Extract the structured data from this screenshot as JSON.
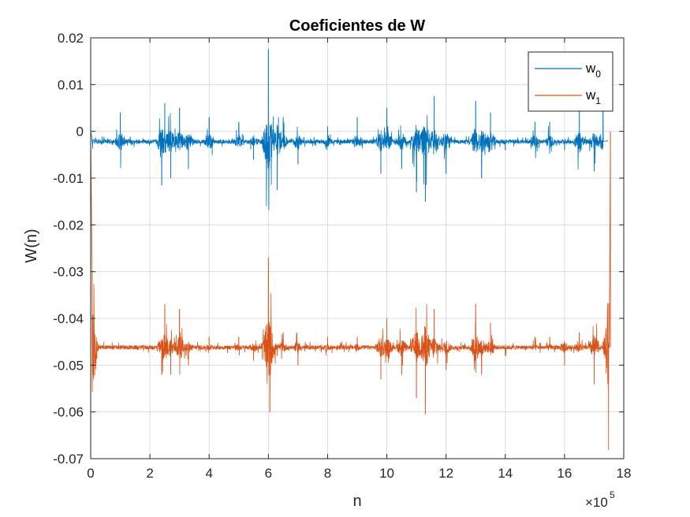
{
  "chart_data": {
    "type": "line",
    "title": "Coeficientes de W",
    "xlabel": "n",
    "ylabel": "W(n)",
    "x_exponent_label": "×10",
    "x_exponent_power": "5",
    "xlim": [
      0,
      18
    ],
    "ylim": [
      -0.07,
      0.02
    ],
    "x_ticks": [
      "0",
      "2",
      "4",
      "6",
      "8",
      "10",
      "12",
      "14",
      "16",
      "18"
    ],
    "y_ticks": [
      "0.02",
      "0.01",
      "0",
      "-0.01",
      "-0.02",
      "-0.03",
      "-0.04",
      "-0.05",
      "-0.06",
      "-0.07"
    ],
    "grid": true,
    "legend_position": "top-right",
    "series": [
      {
        "name": "w0",
        "legend_main": "w",
        "legend_sub": "0",
        "color": "#0072BD",
        "baseline": -0.0022,
        "x": [
          0,
          0.05,
          0.3,
          1.0,
          2.4,
          2.5,
          2.7,
          3.0,
          3.3,
          4.0,
          5.0,
          5.5,
          6.0,
          6.1,
          6.3,
          6.5,
          7.0,
          8.0,
          9.0,
          9.8,
          10.0,
          10.5,
          11.0,
          11.3,
          11.6,
          12.0,
          13.0,
          13.2,
          13.5,
          14.0,
          15.0,
          15.5,
          16.0,
          16.5,
          17.0,
          17.3,
          17.45
        ],
        "y": [
          0,
          -0.0015,
          -0.0025,
          0.004,
          -0.0115,
          0.006,
          -0.01,
          0.005,
          -0.008,
          0.003,
          0.002,
          -0.006,
          0.0175,
          -0.008,
          -0.0125,
          0.003,
          -0.007,
          0.001,
          0.003,
          -0.009,
          0.005,
          -0.008,
          -0.013,
          -0.015,
          0.0075,
          -0.009,
          0.0065,
          -0.01,
          0.004,
          -0.004,
          0.002,
          0.002,
          -0.004,
          0.005,
          -0.0085,
          0.0045,
          -0.002
        ]
      },
      {
        "name": "w1",
        "legend_main": "w",
        "legend_sub": "1",
        "color": "#D95319",
        "baseline": -0.0462,
        "x": [
          0,
          0.05,
          0.2,
          0.5,
          1.0,
          2.4,
          2.5,
          2.7,
          3.0,
          3.3,
          4.0,
          5.0,
          5.5,
          6.0,
          6.05,
          6.3,
          6.5,
          7.0,
          8.0,
          9.0,
          9.8,
          10.0,
          10.5,
          11.0,
          11.3,
          11.6,
          12.0,
          13.0,
          13.2,
          13.5,
          14.0,
          15.0,
          15.5,
          16.0,
          16.5,
          17.0,
          17.3,
          17.5,
          17.55
        ],
        "y": [
          0,
          -0.03,
          -0.045,
          -0.046,
          -0.046,
          -0.052,
          -0.037,
          -0.052,
          -0.038,
          -0.05,
          -0.044,
          -0.044,
          -0.049,
          -0.027,
          -0.06,
          -0.048,
          -0.043,
          -0.05,
          -0.044,
          -0.044,
          -0.053,
          -0.04,
          -0.052,
          -0.057,
          -0.0605,
          -0.038,
          -0.051,
          -0.037,
          -0.052,
          -0.041,
          -0.048,
          -0.044,
          -0.044,
          -0.05,
          -0.043,
          -0.054,
          -0.045,
          -0.046,
          0
        ]
      }
    ]
  }
}
